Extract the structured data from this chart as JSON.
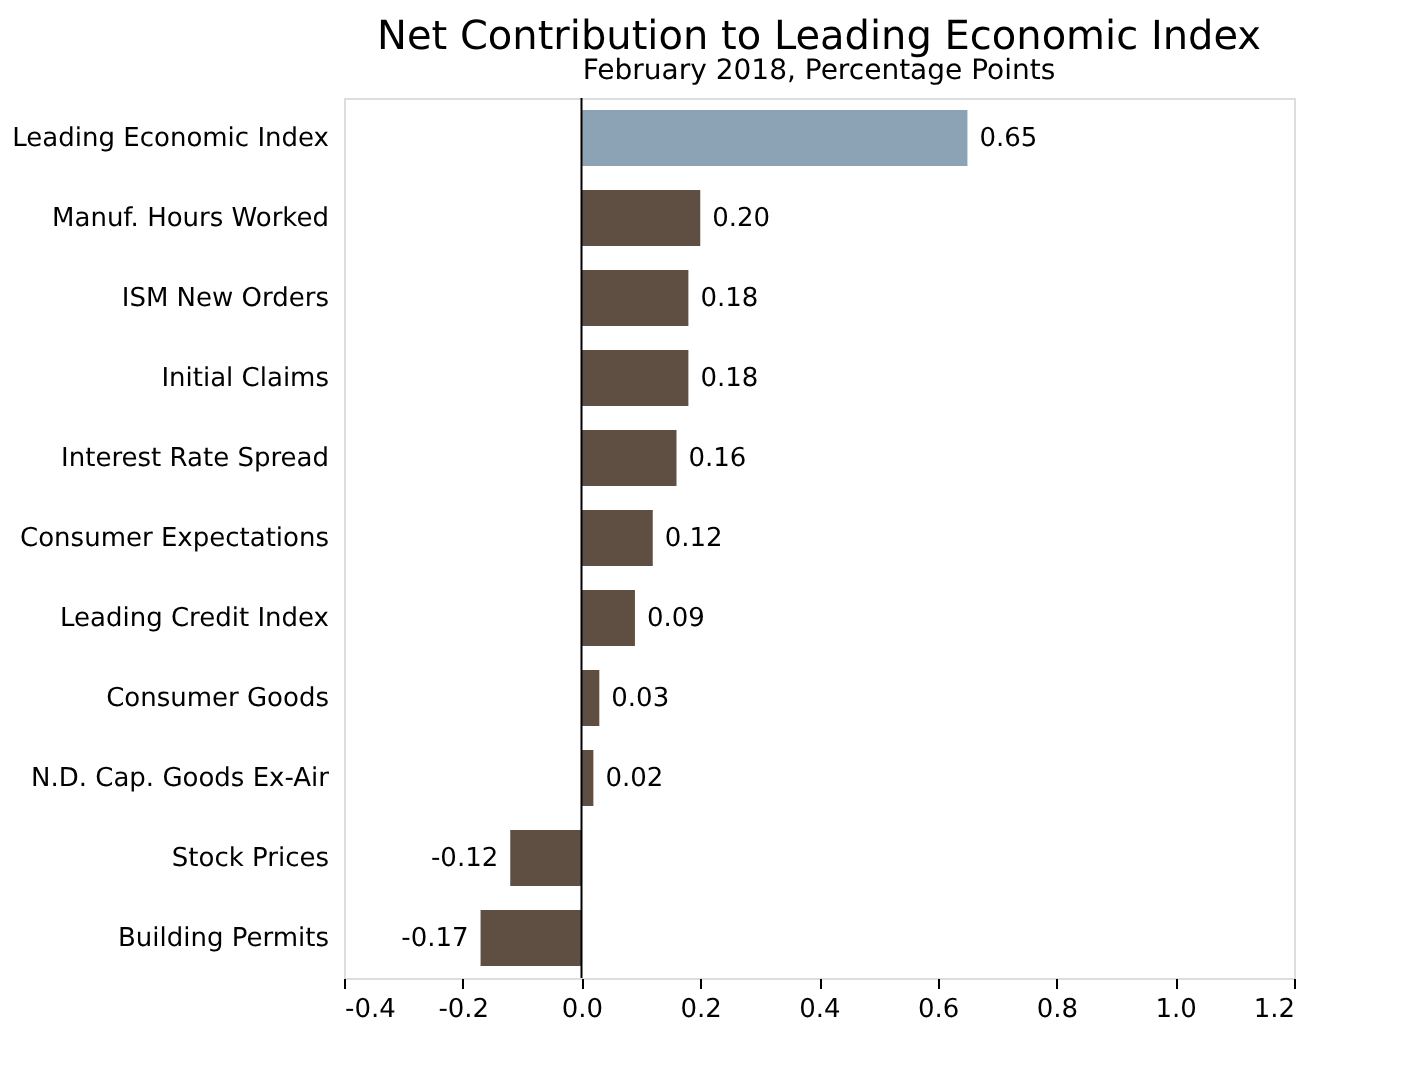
{
  "chart_data": {
    "type": "bar",
    "orientation": "horizontal",
    "title": "Net Contribution to Leading Economic Index",
    "subtitle": "February 2018, Percentage Points",
    "categories": [
      "Leading Economic Index",
      "Manuf. Hours Worked",
      "ISM New Orders",
      "Initial Claims",
      "Interest Rate Spread",
      "Consumer Expectations",
      "Leading Credit Index",
      "Consumer Goods",
      "N.D. Cap. Goods Ex-Air",
      "Stock Prices",
      "Building Permits"
    ],
    "values": [
      0.65,
      0.2,
      0.18,
      0.18,
      0.16,
      0.12,
      0.09,
      0.03,
      0.02,
      -0.12,
      -0.17
    ],
    "colors": [
      "#8ca3b5",
      "#5e4f42",
      "#5e4f42",
      "#5e4f42",
      "#5e4f42",
      "#5e4f42",
      "#5e4f42",
      "#5e4f42",
      "#5e4f42",
      "#5e4f42",
      "#5e4f42"
    ],
    "value_labels": [
      "0.65",
      "0.20",
      "0.18",
      "0.18",
      "0.16",
      "0.12",
      "0.09",
      "0.03",
      "0.02",
      "-0.12",
      "-0.17"
    ],
    "xlim": [
      -0.4,
      1.2
    ],
    "xticks": [
      -0.4,
      -0.2,
      {
        "value": 0,
        "label": "0.0"
      },
      0.2,
      0.4,
      0.6,
      0.8,
      {
        "value": 1.0,
        "label": "1.0"
      },
      1.2
    ],
    "ref_lines": [
      {
        "axis": "x",
        "value": 0
      }
    ],
    "grid": false
  }
}
